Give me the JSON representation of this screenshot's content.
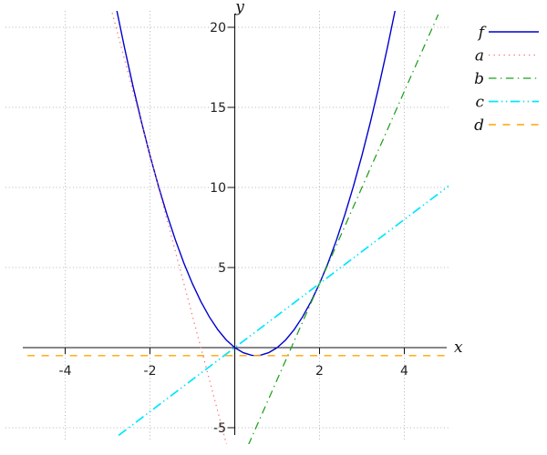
{
  "figure": {
    "background": "#ffffff"
  },
  "chart_data": {
    "type": "line",
    "title": "",
    "xlabel": "x",
    "ylabel": "y",
    "xlim": [
      -5,
      5
    ],
    "ylim": [
      -5.5,
      21
    ],
    "x_ticks": [
      -4,
      -2,
      2,
      4
    ],
    "y_ticks": [
      -5,
      5,
      10,
      15,
      20
    ],
    "grid": true,
    "grid_style": "dotted",
    "legend_position": "outside-top-right",
    "axis_color": "#111111",
    "grid_color": "#b5b5b5",
    "series": [
      {
        "name": "f",
        "label": "f",
        "color": "#0000d0",
        "style": "solid",
        "formula": "f(x) = 2x^2 - 2x",
        "points": [
          [
            -2.8,
            21.28
          ],
          [
            -2.6,
            18.72
          ],
          [
            -2.4,
            16.32
          ],
          [
            -2.2,
            14.08
          ],
          [
            -2.0,
            12.0
          ],
          [
            -1.8,
            10.08
          ],
          [
            -1.6,
            8.32
          ],
          [
            -1.4,
            6.72
          ],
          [
            -1.2,
            5.28
          ],
          [
            -1.0,
            4.0
          ],
          [
            -0.8,
            2.88
          ],
          [
            -0.6,
            1.92
          ],
          [
            -0.4,
            1.12
          ],
          [
            -0.2,
            0.48
          ],
          [
            0.0,
            0.0
          ],
          [
            0.2,
            -0.32
          ],
          [
            0.4,
            -0.48
          ],
          [
            0.5,
            -0.5
          ],
          [
            0.6,
            -0.48
          ],
          [
            0.8,
            -0.32
          ],
          [
            1.0,
            0.0
          ],
          [
            1.2,
            0.48
          ],
          [
            1.4,
            1.12
          ],
          [
            1.6,
            1.92
          ],
          [
            1.8,
            2.88
          ],
          [
            2.0,
            4.0
          ],
          [
            2.2,
            5.28
          ],
          [
            2.4,
            6.72
          ],
          [
            2.6,
            8.32
          ],
          [
            2.8,
            10.08
          ],
          [
            3.0,
            12.0
          ],
          [
            3.2,
            14.08
          ],
          [
            3.4,
            16.32
          ],
          [
            3.6,
            18.72
          ],
          [
            3.8,
            21.28
          ]
        ]
      },
      {
        "name": "a",
        "label": "a",
        "color": "#ff6b6b",
        "style": "dotted",
        "formula": "a(x) = -10x - 8",
        "points": [
          [
            -2.95,
            21.5
          ],
          [
            -0.19,
            -6.1
          ]
        ]
      },
      {
        "name": "b",
        "label": "b",
        "color": "#1ca01c",
        "style": "dashdot",
        "formula": "b(x) = 6x - 8",
        "points": [
          [
            0.32,
            -6.08
          ],
          [
            4.8,
            20.8
          ]
        ]
      },
      {
        "name": "c",
        "label": "c",
        "color": "#00e6ff",
        "style": "dashdotdot",
        "formula": "c(x) = 2x",
        "points": [
          [
            -2.74,
            -5.48
          ],
          [
            5.06,
            10.12
          ]
        ]
      },
      {
        "name": "d",
        "label": "d",
        "color": "#ffa500",
        "style": "dashed",
        "formula": "d(x) = -1/2",
        "points": [
          [
            -4.89,
            -0.5
          ],
          [
            4.97,
            -0.5
          ]
        ]
      }
    ]
  }
}
